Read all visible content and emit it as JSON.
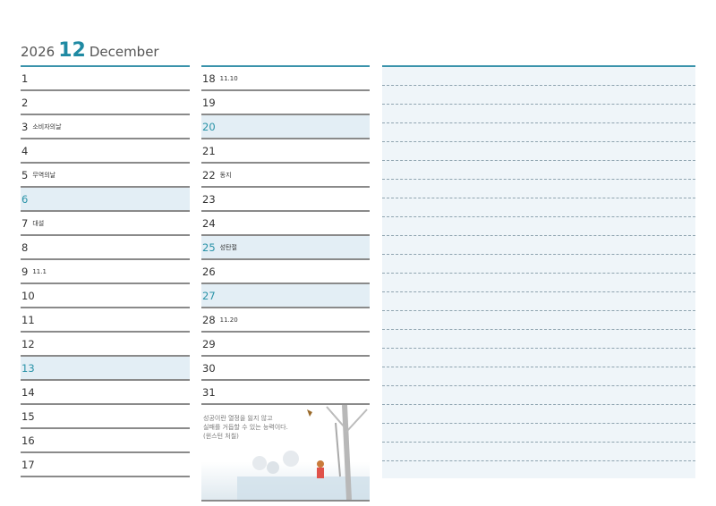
{
  "header": {
    "year": "2026",
    "month_num": "12",
    "month_name": "December"
  },
  "accent": "#1f8aa3",
  "left_days": [
    {
      "n": "1",
      "h": ""
    },
    {
      "n": "2",
      "h": ""
    },
    {
      "n": "3",
      "h": "소비자의날"
    },
    {
      "n": "4",
      "h": ""
    },
    {
      "n": "5",
      "h": "무역의날"
    },
    {
      "n": "6",
      "h": "",
      "sun": true
    },
    {
      "n": "7",
      "h": "대설"
    },
    {
      "n": "8",
      "h": ""
    },
    {
      "n": "9",
      "h": "11.1"
    },
    {
      "n": "10",
      "h": ""
    },
    {
      "n": "11",
      "h": ""
    },
    {
      "n": "12",
      "h": ""
    },
    {
      "n": "13",
      "h": "",
      "sun": true
    },
    {
      "n": "14",
      "h": ""
    },
    {
      "n": "15",
      "h": ""
    },
    {
      "n": "16",
      "h": ""
    },
    {
      "n": "17",
      "h": ""
    }
  ],
  "right_days": [
    {
      "n": "18",
      "h": "11.10"
    },
    {
      "n": "19",
      "h": ""
    },
    {
      "n": "20",
      "h": "",
      "sun": true
    },
    {
      "n": "21",
      "h": ""
    },
    {
      "n": "22",
      "h": "동지"
    },
    {
      "n": "23",
      "h": ""
    },
    {
      "n": "24",
      "h": ""
    },
    {
      "n": "25",
      "h": "성탄절",
      "sun": true
    },
    {
      "n": "26",
      "h": ""
    },
    {
      "n": "27",
      "h": "",
      "sun": true
    },
    {
      "n": "28",
      "h": "11.20"
    },
    {
      "n": "29",
      "h": ""
    },
    {
      "n": "30",
      "h": ""
    },
    {
      "n": "31",
      "h": ""
    }
  ],
  "quote": {
    "line1": "성공이란 열정을 잃지 않고",
    "line2": "실패를 거듭할 수 있는 능력이다.",
    "author": "(윈스턴 처칠)"
  }
}
